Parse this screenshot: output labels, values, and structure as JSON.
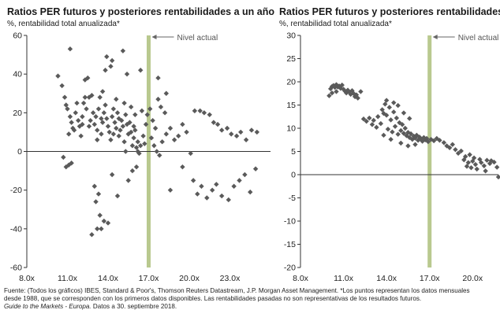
{
  "footer": {
    "line1": "Fuente: (Todos los gráficos) IBES, Standard & Poor's, Thomson Reuters Datastream, J.P. Morgan Asset Management. *Los puntos representan los datos mensuales",
    "line2": "desde 1988, que se corresponden con los primeros datos disponibles. Las rentabilidades pasadas no son representativas de los resultados futuros.",
    "line3_italic": "Guide to the Markets - Europa.",
    "line3_rest": " Datos a 30. septiembre 2018."
  },
  "colors": {
    "points": "#5a5a5a",
    "current_band": "#b9c98f",
    "arrow": "#666666",
    "axis": "#333333"
  },
  "chart_data": [
    {
      "type": "scatter",
      "title": "Ratios PER futuros y posteriores rentabilidades a un año",
      "subtitle": "%, rentabilidad total anualizada*",
      "xlabel": "",
      "ylabel": "",
      "xlim": [
        8,
        26
      ],
      "ylim": [
        -60,
        60
      ],
      "xticks": [
        8,
        11,
        14,
        17,
        20,
        23
      ],
      "xtick_labels": [
        "8.0x",
        "11.0x",
        "14.0x",
        "17.0x",
        "20.0x",
        "23.0x"
      ],
      "yticks": [
        -60,
        -40,
        -20,
        0,
        20,
        40,
        60
      ],
      "ytick_labels": [
        "-60",
        "-40",
        "-20",
        "0",
        "20",
        "40",
        "60"
      ],
      "current_value": 17.0,
      "current_label": "Nivel actual",
      "grid": false,
      "points": [
        [
          10.3,
          39
        ],
        [
          10.6,
          34
        ],
        [
          10.8,
          28
        ],
        [
          10.9,
          24
        ],
        [
          11.0,
          22
        ],
        [
          11.2,
          53
        ],
        [
          11.2,
          18
        ],
        [
          11.3,
          15
        ],
        [
          11.4,
          12
        ],
        [
          11.1,
          9
        ],
        [
          11.5,
          11
        ],
        [
          11.6,
          20
        ],
        [
          11.8,
          16
        ],
        [
          11.9,
          13
        ],
        [
          12.0,
          8
        ],
        [
          12.1,
          18
        ],
        [
          12.2,
          25
        ],
        [
          12.4,
          22
        ],
        [
          12.6,
          28
        ],
        [
          12.3,
          37
        ],
        [
          12.5,
          38
        ],
        [
          12.8,
          29
        ],
        [
          12.9,
          20
        ],
        [
          12.7,
          16
        ],
        [
          13.0,
          14
        ],
        [
          13.1,
          18
        ],
        [
          13.3,
          22
        ],
        [
          13.4,
          28
        ],
        [
          13.2,
          11
        ],
        [
          13.5,
          9
        ],
        [
          13.6,
          15
        ],
        [
          13.7,
          20
        ],
        [
          13.8,
          24
        ],
        [
          13.9,
          17
        ],
        [
          14.0,
          13
        ],
        [
          14.1,
          10
        ],
        [
          14.2,
          6
        ],
        [
          14.3,
          18
        ],
        [
          14.4,
          22
        ],
        [
          14.5,
          15
        ],
        [
          14.6,
          12
        ],
        [
          14.7,
          20
        ],
        [
          14.8,
          8
        ],
        [
          14.9,
          11
        ],
        [
          15.0,
          16
        ],
        [
          15.1,
          13
        ],
        [
          15.2,
          5
        ],
        [
          15.3,
          19
        ],
        [
          15.4,
          14
        ],
        [
          15.5,
          9
        ],
        [
          15.6,
          15
        ],
        [
          15.7,
          10
        ],
        [
          15.8,
          3
        ],
        [
          15.9,
          7
        ],
        [
          16.0,
          11
        ],
        [
          16.1,
          2
        ],
        [
          16.2,
          5
        ],
        [
          16.3,
          -1
        ],
        [
          16.4,
          3
        ],
        [
          16.6,
          8
        ],
        [
          16.8,
          14
        ],
        [
          16.9,
          19
        ],
        [
          17.1,
          22
        ],
        [
          17.3,
          16
        ],
        [
          17.5,
          12
        ],
        [
          17.7,
          27
        ],
        [
          17.9,
          23
        ],
        [
          18.2,
          20
        ],
        [
          17.2,
          7
        ],
        [
          17.4,
          3
        ],
        [
          17.6,
          0
        ],
        [
          17.8,
          -2
        ],
        [
          18.0,
          5
        ],
        [
          18.3,
          9
        ],
        [
          18.6,
          12
        ],
        [
          18.9,
          6
        ],
        [
          19.2,
          8
        ],
        [
          19.5,
          14
        ],
        [
          19.8,
          10
        ],
        [
          20.1,
          -1
        ],
        [
          20.4,
          21
        ],
        [
          20.8,
          21
        ],
        [
          21.1,
          20
        ],
        [
          21.5,
          19
        ],
        [
          21.8,
          15
        ],
        [
          22.1,
          14
        ],
        [
          22.4,
          11
        ],
        [
          22.8,
          12
        ],
        [
          23.1,
          9
        ],
        [
          23.5,
          8
        ],
        [
          23.8,
          10
        ],
        [
          24.2,
          6
        ],
        [
          24.6,
          11
        ],
        [
          25.0,
          10
        ],
        [
          13.9,
          49
        ],
        [
          14.3,
          47
        ],
        [
          15.1,
          52
        ],
        [
          14.2,
          44
        ],
        [
          13.8,
          42
        ],
        [
          15.4,
          40
        ],
        [
          16.4,
          42
        ],
        [
          17.7,
          38
        ],
        [
          18.3,
          30
        ],
        [
          10.7,
          -3
        ],
        [
          10.9,
          -8
        ],
        [
          11.1,
          -7
        ],
        [
          11.3,
          -6
        ],
        [
          13.0,
          -18
        ],
        [
          13.3,
          -22
        ],
        [
          13.1,
          -26
        ],
        [
          12.8,
          -43
        ],
        [
          13.2,
          -40
        ],
        [
          13.5,
          -40
        ],
        [
          13.7,
          -36
        ],
        [
          13.4,
          -33
        ],
        [
          14.0,
          -37
        ],
        [
          14.3,
          -12
        ],
        [
          14.7,
          -23
        ],
        [
          15.5,
          -15
        ],
        [
          15.8,
          -10
        ],
        [
          16.1,
          -8
        ],
        [
          18.6,
          -20
        ],
        [
          19.5,
          -8
        ],
        [
          20.3,
          -15
        ],
        [
          20.6,
          -22
        ],
        [
          20.9,
          -18
        ],
        [
          21.3,
          -24
        ],
        [
          21.7,
          -20
        ],
        [
          22.0,
          -17
        ],
        [
          22.4,
          -23
        ],
        [
          22.9,
          -25
        ],
        [
          23.3,
          -18
        ],
        [
          23.7,
          -15
        ],
        [
          24.1,
          -12
        ],
        [
          24.5,
          -21
        ],
        [
          24.9,
          -9
        ],
        [
          12.3,
          28
        ],
        [
          12.1,
          14
        ],
        [
          11.7,
          25
        ],
        [
          13.6,
          31
        ],
        [
          14.6,
          27
        ],
        [
          15.2,
          25
        ],
        [
          15.7,
          23
        ],
        [
          16.5,
          21
        ],
        [
          16.0,
          19
        ],
        [
          14.8,
          17
        ],
        [
          13.5,
          17
        ],
        [
          12.6,
          13
        ],
        [
          15.9,
          13
        ],
        [
          14.4,
          9
        ],
        [
          13.2,
          6
        ],
        [
          15.3,
          0
        ],
        [
          16.2,
          0
        ],
        [
          16.7,
          4
        ]
      ]
    },
    {
      "type": "scatter",
      "title": "Ratios PER futuros y posteriores rentabilidades a",
      "subtitle": "%, rentabilidad total anualizada*",
      "xlabel": "",
      "ylabel": "",
      "xlim": [
        8,
        21.8
      ],
      "ylim": [
        -20,
        30
      ],
      "xticks": [
        8,
        11,
        14,
        17,
        20
      ],
      "xtick_labels": [
        "8.0x",
        "11.0x",
        "14.0x",
        "17.0x",
        "20.0x"
      ],
      "yticks": [
        -20,
        -15,
        -10,
        -5,
        0,
        5,
        10,
        15,
        20,
        25,
        30
      ],
      "ytick_labels": [
        "-20",
        "-15",
        "-10",
        "-5",
        "0",
        "5",
        "10",
        "15",
        "20",
        "25",
        "30"
      ],
      "current_value": 17.0,
      "current_label": "Nivel actual",
      "grid": false,
      "points": [
        [
          10.0,
          17.0
        ],
        [
          10.1,
          18.5
        ],
        [
          10.2,
          19.0
        ],
        [
          10.3,
          19.2
        ],
        [
          10.4,
          18.8
        ],
        [
          10.5,
          19.4
        ],
        [
          10.6,
          18.9
        ],
        [
          10.7,
          19.1
        ],
        [
          10.8,
          18.6
        ],
        [
          10.9,
          19.3
        ],
        [
          11.0,
          18.4
        ],
        [
          11.1,
          18.0
        ],
        [
          11.2,
          17.6
        ],
        [
          11.3,
          18.2
        ],
        [
          11.4,
          17.8
        ],
        [
          11.5,
          17.3
        ],
        [
          11.6,
          18.1
        ],
        [
          11.7,
          17.5
        ],
        [
          11.8,
          16.8
        ],
        [
          11.9,
          17.2
        ],
        [
          12.0,
          16.5
        ],
        [
          12.2,
          17.9
        ],
        [
          10.2,
          17.6
        ],
        [
          10.5,
          17.9
        ],
        [
          12.4,
          12.0
        ],
        [
          12.6,
          11.5
        ],
        [
          12.8,
          12.2
        ],
        [
          13.0,
          10.8
        ],
        [
          13.1,
          11.7
        ],
        [
          13.3,
          10.2
        ],
        [
          13.4,
          12.5
        ],
        [
          13.6,
          11.0
        ],
        [
          13.7,
          14.0
        ],
        [
          13.8,
          13.2
        ],
        [
          13.9,
          15.2
        ],
        [
          14.0,
          12.8
        ],
        [
          14.1,
          9.8
        ],
        [
          14.2,
          14.5
        ],
        [
          14.3,
          11.8
        ],
        [
          14.4,
          9.2
        ],
        [
          14.5,
          13.5
        ],
        [
          14.6,
          10.4
        ],
        [
          14.7,
          12.2
        ],
        [
          14.8,
          8.7
        ],
        [
          14.9,
          11.2
        ],
        [
          15.0,
          9.5
        ],
        [
          15.1,
          10.8
        ],
        [
          15.2,
          8.9
        ],
        [
          15.3,
          10.0
        ],
        [
          15.4,
          8.4
        ],
        [
          15.5,
          9.1
        ],
        [
          15.6,
          8.0
        ],
        [
          15.7,
          8.8
        ],
        [
          15.8,
          7.6
        ],
        [
          15.9,
          8.3
        ],
        [
          16.0,
          7.9
        ],
        [
          16.1,
          8.5
        ],
        [
          16.2,
          7.4
        ],
        [
          16.3,
          8.1
        ],
        [
          16.4,
          7.7
        ],
        [
          16.5,
          7.2
        ],
        [
          16.6,
          8.0
        ],
        [
          16.7,
          7.5
        ],
        [
          16.8,
          7.8
        ],
        [
          16.9,
          7.1
        ],
        [
          17.1,
          7.6
        ],
        [
          17.3,
          7.3
        ],
        [
          17.5,
          7.8
        ],
        [
          17.7,
          7.4
        ],
        [
          14.0,
          16.0
        ],
        [
          14.5,
          15.5
        ],
        [
          14.8,
          14.9
        ],
        [
          15.2,
          13.3
        ],
        [
          15.6,
          12.1
        ],
        [
          13.8,
          8.5
        ],
        [
          14.3,
          7.6
        ],
        [
          15.0,
          6.8
        ],
        [
          15.5,
          6.2
        ],
        [
          16.0,
          6.5
        ],
        [
          18.0,
          6.9
        ],
        [
          18.2,
          6.2
        ],
        [
          18.4,
          5.8
        ],
        [
          18.6,
          6.5
        ],
        [
          18.8,
          5.4
        ],
        [
          19.0,
          4.6
        ],
        [
          19.2,
          5.1
        ],
        [
          19.4,
          3.2
        ],
        [
          19.5,
          3.9
        ],
        [
          19.6,
          1.8
        ],
        [
          19.7,
          2.6
        ],
        [
          19.8,
          4.3
        ],
        [
          19.9,
          1.5
        ],
        [
          20.0,
          2.9
        ],
        [
          20.1,
          3.6
        ],
        [
          20.2,
          2.2
        ],
        [
          20.3,
          1.2
        ],
        [
          20.5,
          3.3
        ],
        [
          20.6,
          2.6
        ],
        [
          20.8,
          1.9
        ],
        [
          20.9,
          0.8
        ],
        [
          21.0,
          3.1
        ],
        [
          21.2,
          2.4
        ],
        [
          21.3,
          3.0
        ],
        [
          21.5,
          2.7
        ],
        [
          21.7,
          1.6
        ],
        [
          21.8,
          -0.5
        ]
      ]
    }
  ]
}
